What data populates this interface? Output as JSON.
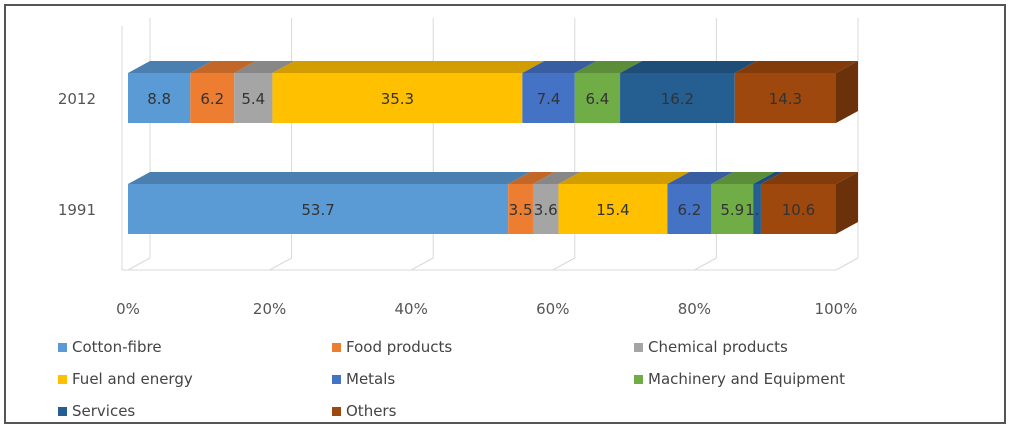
{
  "chart_data": {
    "type": "bar",
    "orientation": "horizontal",
    "stacked": "100%",
    "style": "3d",
    "categories": [
      "2012",
      "1991"
    ],
    "x_ticks": [
      "0%",
      "20%",
      "40%",
      "60%",
      "80%",
      "100%"
    ],
    "xlim": [
      0,
      100
    ],
    "grid": true,
    "legend_position": "bottom",
    "series": [
      {
        "name": "Cotton-fibre",
        "color": "#5b9bd5",
        "values": [
          8.8,
          53.7
        ],
        "labels": [
          "8.8",
          "53.7"
        ]
      },
      {
        "name": "Food products",
        "color": "#ed7d31",
        "values": [
          6.2,
          3.5
        ],
        "labels": [
          "6.2",
          "3.5"
        ]
      },
      {
        "name": "Chemical products",
        "color": "#a5a5a5",
        "values": [
          5.4,
          3.6
        ],
        "labels": [
          "5.4",
          "3.6"
        ]
      },
      {
        "name": "Fuel and energy",
        "color": "#ffc000",
        "values": [
          35.3,
          15.4
        ],
        "labels": [
          "35.3",
          "15.4"
        ]
      },
      {
        "name": "Metals",
        "color": "#4472c4",
        "values": [
          7.4,
          6.2
        ],
        "labels": [
          "7.4",
          "6.2"
        ]
      },
      {
        "name": "Machinery and Equipment",
        "color": "#70ad47",
        "values": [
          6.4,
          5.9
        ],
        "labels": [
          "6.4",
          "5.9"
        ]
      },
      {
        "name": "Services",
        "color": "#255e91",
        "values": [
          16.2,
          1.1
        ],
        "labels": [
          "16.2",
          "1.1"
        ]
      },
      {
        "name": "Others",
        "color": "#9e480e",
        "values": [
          14.3,
          10.6
        ],
        "labels": [
          "14.3",
          "10.6"
        ]
      }
    ]
  }
}
